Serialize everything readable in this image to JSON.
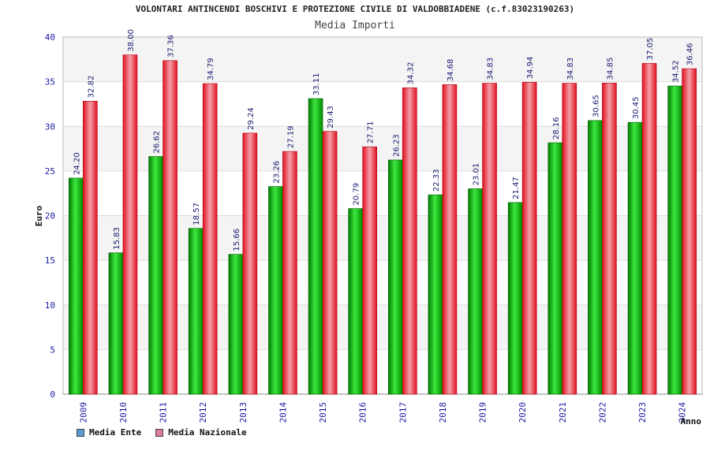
{
  "chart_data": {
    "type": "bar",
    "title": "VOLONTARI ANTINCENDI BOSCHIVI E PROTEZIONE CIVILE DI VALDOBBIADENE (c.f.83023190263)",
    "subtitle": "Media Importi",
    "xlabel": "Anno",
    "ylabel": "Euro",
    "ylim": [
      0,
      40
    ],
    "yticks": [
      0,
      5,
      10,
      15,
      20,
      25,
      30,
      35,
      40
    ],
    "categories": [
      "2009",
      "2010",
      "2011",
      "2012",
      "2013",
      "2014",
      "2015",
      "2016",
      "2017",
      "2018",
      "2019",
      "2020",
      "2021",
      "2022",
      "2023",
      "2024"
    ],
    "series": [
      {
        "name": "Media Ente",
        "color": "#00b000",
        "legend_color": "#5b9bd5",
        "values": [
          24.2,
          15.83,
          26.62,
          18.57,
          15.66,
          23.26,
          33.11,
          20.79,
          26.23,
          22.33,
          23.01,
          21.47,
          28.16,
          30.65,
          30.45,
          34.52
        ]
      },
      {
        "name": "Media Nazionale",
        "color": "#e8142a",
        "legend_color": "#e07aa0",
        "values": [
          32.82,
          38.0,
          37.36,
          34.79,
          29.24,
          27.19,
          29.43,
          27.71,
          34.32,
          34.68,
          34.83,
          34.94,
          34.83,
          34.85,
          37.05,
          36.46
        ]
      }
    ],
    "legend_position": "bottom-left",
    "grid": true
  }
}
